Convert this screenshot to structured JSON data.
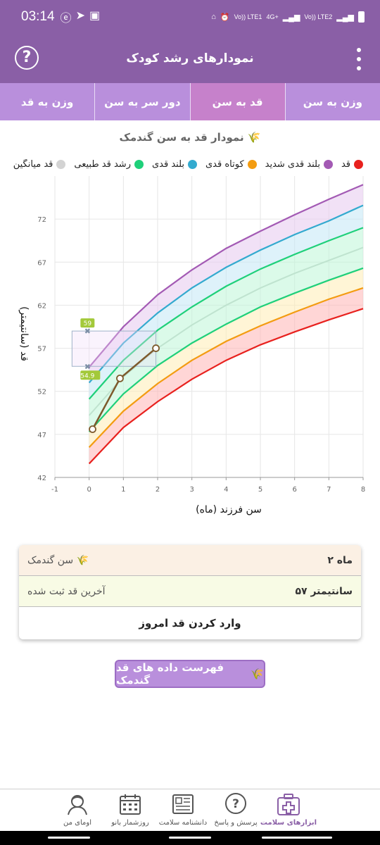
{
  "status_bar": {
    "time": "03:14",
    "net1": "Vo)) LTE1",
    "net2": "Vo)) LTE2",
    "net_4g": "4G+"
  },
  "app": {
    "title": "نمودارهای رشد کودک",
    "help_symbol": "?"
  },
  "tabs": [
    {
      "label": "وزن به سن",
      "active": false
    },
    {
      "label": "قد به سن",
      "active": true
    },
    {
      "label": "دور سر به سن",
      "active": false
    },
    {
      "label": "وزن به قد",
      "active": false
    }
  ],
  "chart": {
    "heading": "نمودار قد به سن گندمک",
    "heading_icon": "wheat-icon"
  },
  "legend": [
    {
      "label": "قد",
      "color": "#e8211e"
    },
    {
      "label": "بلند قدی شدید",
      "color": "#a35ab4"
    },
    {
      "label": "کوتاه قدی",
      "color": "#f39c11"
    },
    {
      "label": "بلند قدی",
      "color": "#33aacf"
    },
    {
      "label": "رشد قد طبیعی",
      "color": "#1fd07a"
    },
    {
      "label": "قد میانگین",
      "color": "#d3d3d3"
    }
  ],
  "chart_data": {
    "type": "line",
    "xlabel": "سن فرزند (ماه)",
    "ylabel": "قد (سانتیمتر)",
    "xlim": [
      -1,
      8
    ],
    "ylim": [
      42,
      77
    ],
    "xticks": [
      -1,
      0,
      1,
      2,
      3,
      4,
      5,
      6,
      7,
      8
    ],
    "yticks": [
      42,
      47,
      52,
      57,
      62,
      67,
      72
    ],
    "x": [
      0,
      1,
      2,
      3,
      4,
      5,
      6,
      7,
      8
    ],
    "curves": [
      {
        "key": "red",
        "color": "#e8211e",
        "values": [
          43.6,
          47.8,
          50.8,
          53.4,
          55.6,
          57.4,
          58.9,
          60.3,
          61.6
        ]
      },
      {
        "key": "orange",
        "color": "#f39c11",
        "values": [
          45.5,
          49.7,
          52.9,
          55.6,
          57.8,
          59.6,
          61.2,
          62.7,
          64.0
        ]
      },
      {
        "key": "green_low",
        "color": "#1fd07a",
        "values": [
          47.3,
          51.7,
          55.0,
          57.6,
          59.8,
          61.8,
          63.4,
          64.9,
          66.3
        ]
      },
      {
        "key": "median",
        "color": "#bfe3cf",
        "values": [
          49.2,
          53.7,
          57.0,
          59.7,
          62.0,
          64.0,
          65.7,
          67.2,
          68.7
        ]
      },
      {
        "key": "green_high",
        "color": "#1fd07a",
        "values": [
          51.1,
          55.6,
          59.1,
          61.8,
          64.2,
          66.2,
          67.9,
          69.5,
          71.0
        ]
      },
      {
        "key": "blue",
        "color": "#33aacf",
        "values": [
          53.0,
          57.6,
          61.1,
          64.0,
          66.4,
          68.4,
          70.2,
          71.8,
          73.6
        ]
      },
      {
        "key": "purple",
        "color": "#a35ab4",
        "values": [
          54.8,
          59.5,
          63.2,
          66.1,
          68.6,
          70.6,
          72.5,
          74.3,
          76.0
        ]
      }
    ],
    "child": {
      "x": [
        0.1,
        0.9,
        1.95
      ],
      "y": [
        47.6,
        53.5,
        57.0
      ],
      "color": "#7d5a2c"
    },
    "range_markers": {
      "upper": "59",
      "lower": "54.9",
      "x": -0.5,
      "y_upper": 59,
      "y_lower": 54.9,
      "x_end": 1.95
    }
  },
  "info_card": {
    "age_label": "سن گندمک",
    "age_value": "۲ ماه",
    "last_label": "آخرین قد ثبت شده",
    "last_value": "۵۷ سانتیمتر",
    "action": "وارد کردن قد امروز"
  },
  "list_button": "فهرست داده های قد گندمک",
  "bottom_nav": [
    {
      "label": "ابزارهای سلامت",
      "icon": "medical-kit-icon",
      "active": true
    },
    {
      "label": "پرسش و پاسخ",
      "icon": "question-bubble-icon",
      "active": false
    },
    {
      "label": "دانشنامه سلامت",
      "icon": "encyclopedia-icon",
      "active": false
    },
    {
      "label": "روزشمار بانو",
      "icon": "calendar-icon",
      "active": false
    },
    {
      "label": "اومای من",
      "icon": "user-avatar-icon",
      "active": false
    }
  ]
}
